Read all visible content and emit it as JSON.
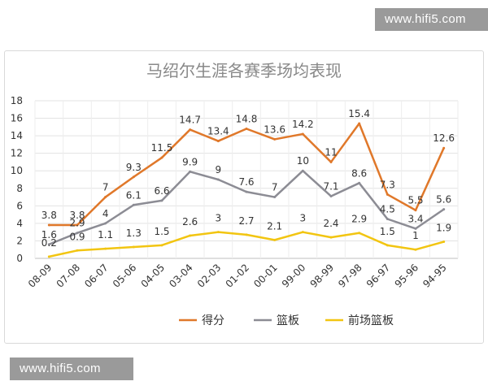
{
  "watermark": {
    "text": "www.hifi5.com"
  },
  "chart_data": {
    "type": "line",
    "title": "马绍尔生涯各赛季场均表现",
    "categories": [
      "08-09",
      "07-08",
      "06-07",
      "05-06",
      "04-05",
      "03-04",
      "02-03",
      "01-02",
      "00-01",
      "99-00",
      "98-99",
      "97-98",
      "96-97",
      "95-96",
      "94-95"
    ],
    "ylim": [
      0,
      18
    ],
    "yticks": [
      0,
      2,
      4,
      6,
      8,
      10,
      12,
      14,
      16,
      18
    ],
    "grid": true,
    "legend_position": "bottom",
    "series": [
      {
        "name": "得分",
        "color": "#e0782a",
        "values": [
          3.8,
          3.8,
          7,
          9.3,
          11.5,
          14.7,
          13.4,
          14.8,
          13.6,
          14.2,
          11,
          15.4,
          7.3,
          5.5,
          12.6
        ]
      },
      {
        "name": "篮板",
        "color": "#8c8c94",
        "values": [
          1.6,
          2.9,
          4,
          6.1,
          6.6,
          9.9,
          9,
          7.6,
          7,
          10,
          7.1,
          8.6,
          4.5,
          3.4,
          5.6
        ]
      },
      {
        "name": "前场篮板",
        "color": "#f2c511",
        "values": [
          0.2,
          0.9,
          1.1,
          1.3,
          1.5,
          2.6,
          3,
          2.7,
          2.1,
          3,
          2.4,
          2.9,
          1.5,
          1,
          1.9
        ]
      }
    ]
  }
}
